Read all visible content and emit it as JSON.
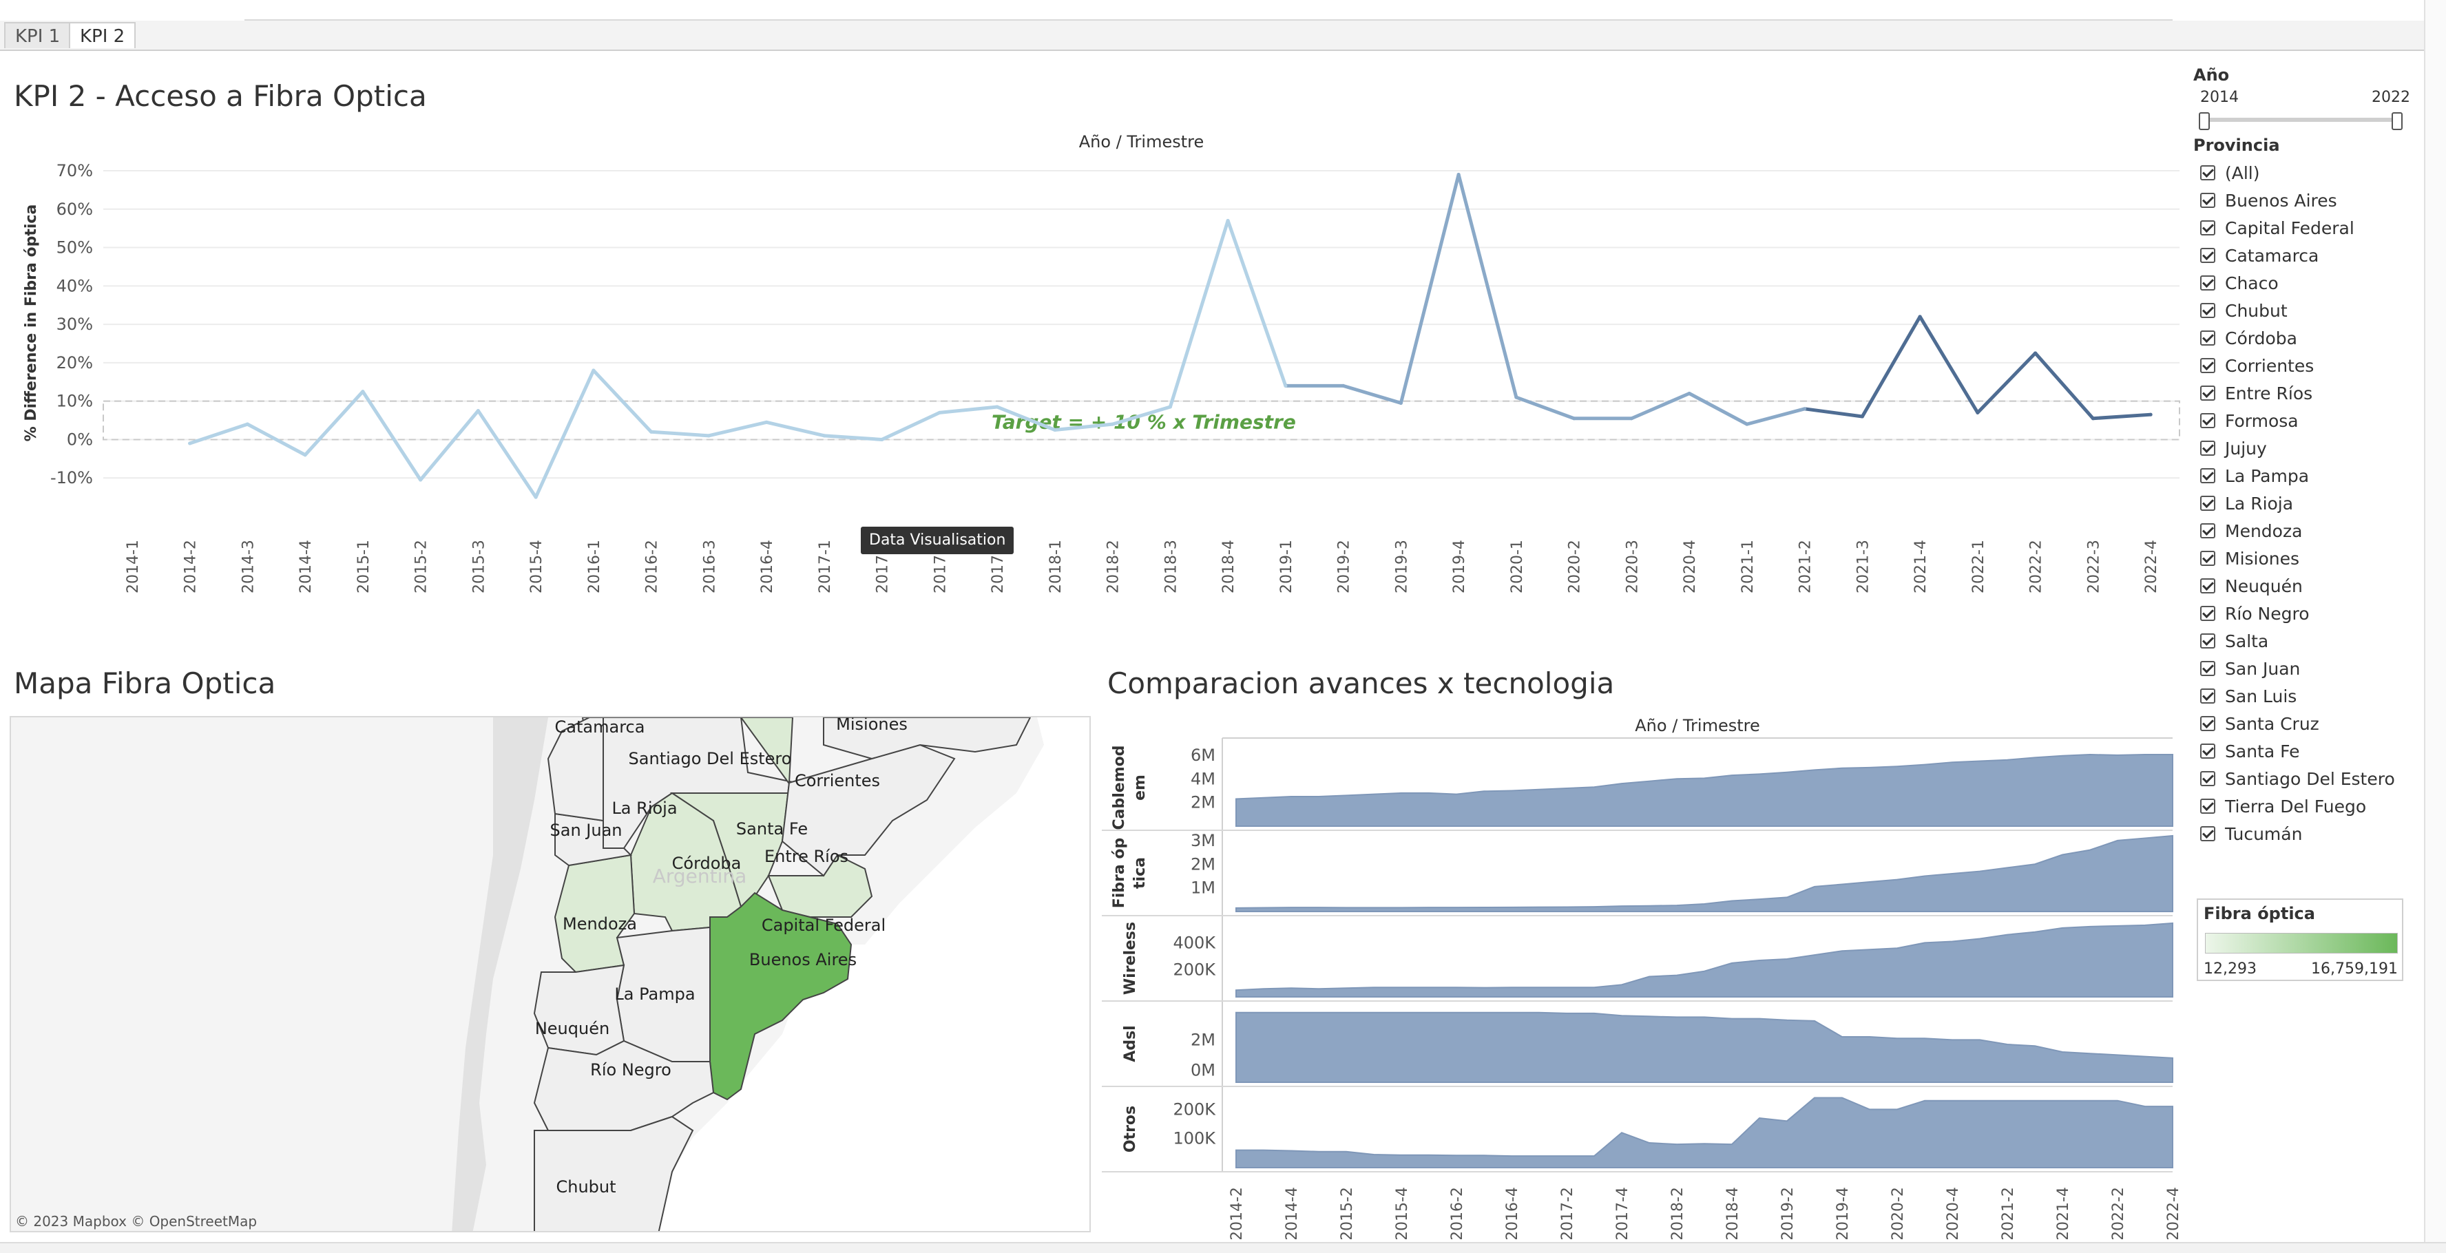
{
  "tabs": [
    "KPI 1",
    "KPI 2"
  ],
  "kpi_title": "KPI 2 - Acceso a Fibra Optica",
  "map_title": "Mapa Fibra Optica",
  "comp_title": "Comparacion avances x tecnologia",
  "tooltip": "Data Visualisation",
  "target_label": "Target =    + 10 %  x Trimestre",
  "map_credit": "© 2023 Mapbox  © OpenStreetMap",
  "filters": {
    "year_label": "Año",
    "year_min": "2014",
    "year_max": "2022",
    "province_label": "Provincia",
    "provinces": [
      "(All)",
      "Buenos Aires",
      "Capital Federal",
      "Catamarca",
      "Chaco",
      "Chubut",
      "Córdoba",
      "Corrientes",
      "Entre Ríos",
      "Formosa",
      "Jujuy",
      "La Pampa",
      "La Rioja",
      "Mendoza",
      "Misiones",
      "Neuquén",
      "Río Negro",
      "Salta",
      "San Juan",
      "San Luis",
      "Santa Cruz",
      "Santa Fe",
      "Santiago Del Estero",
      "Tierra Del Fuego",
      "Tucumán"
    ],
    "legend_title": "Fibra óptica",
    "legend_min": "12,293",
    "legend_max": "16,759,191"
  },
  "map_labels": [
    "Catamarca",
    "Misiones",
    "Santiago Del Estero",
    "Corrientes",
    "La Rioja",
    "Santa Fe",
    "San Juan",
    "Córdoba",
    "Entre Ríos",
    "Argentina",
    "Capital Federal",
    "Mendoza",
    "Buenos Aires",
    "La Pampa",
    "Neuquén",
    "Río Negro",
    "Chubut"
  ],
  "colors": {
    "line_light": "#b3d2e6",
    "line_mid": "#8aa9c8",
    "line_dark": "#4f6d93",
    "area_fill": "#8ea5c3",
    "target": "#5aa044",
    "buenos_aires": "#6bb85a",
    "map_light_green": "#dcebd5",
    "map_grey": "#efefef"
  },
  "chart_data": [
    {
      "type": "line",
      "title": "Año / Trimestre",
      "xlabel": "Año / Trimestre",
      "ylabel": "% Difference in Fibra óptica",
      "ylim": [
        -20,
        70
      ],
      "yticks": [
        "70%",
        "60%",
        "50%",
        "40%",
        "30%",
        "20%",
        "10%",
        "0%",
        "-10%"
      ],
      "grid": true,
      "target_band": [
        0,
        10
      ],
      "categories": [
        "2014-1",
        "2014-2",
        "2014-3",
        "2014-4",
        "2015-1",
        "2015-2",
        "2015-3",
        "2015-4",
        "2016-1",
        "2016-2",
        "2016-3",
        "2016-4",
        "2017-1",
        "2017-2",
        "2017-3",
        "2017-4",
        "2018-1",
        "2018-2",
        "2018-3",
        "2018-4",
        "2019-1",
        "2019-2",
        "2019-3",
        "2019-4",
        "2020-1",
        "2020-2",
        "2020-3",
        "2020-4",
        "2021-1",
        "2021-2",
        "2021-3",
        "2021-4",
        "2022-1",
        "2022-2",
        "2022-3",
        "2022-4"
      ],
      "values": [
        null,
        -1,
        4,
        -4,
        12.5,
        -10.5,
        7.5,
        -15,
        18,
        2,
        1,
        4.5,
        1,
        0,
        7,
        8.5,
        2.5,
        4,
        8.5,
        57,
        14,
        14,
        9.5,
        69,
        11,
        5.5,
        5.5,
        12,
        4,
        8,
        6,
        32,
        7,
        22.5,
        5.5,
        6.5
      ]
    },
    {
      "type": "area",
      "title": "Año / Trimestre",
      "xlabel": "Año / Trimestre",
      "categories": [
        "2014-2",
        "2014-3",
        "2014-4",
        "2015-1",
        "2015-2",
        "2015-3",
        "2015-4",
        "2016-1",
        "2016-2",
        "2016-3",
        "2016-4",
        "2017-1",
        "2017-2",
        "2017-3",
        "2017-4",
        "2018-1",
        "2018-2",
        "2018-3",
        "2018-4",
        "2019-1",
        "2019-2",
        "2019-3",
        "2019-4",
        "2020-1",
        "2020-2",
        "2020-3",
        "2020-4",
        "2021-1",
        "2021-2",
        "2021-3",
        "2021-4",
        "2022-1",
        "2022-2",
        "2022-3",
        "2022-4"
      ],
      "xticks": [
        "2014-2",
        "2014-4",
        "2015-2",
        "2015-4",
        "2016-2",
        "2016-4",
        "2017-2",
        "2017-4",
        "2018-2",
        "2018-4",
        "2019-2",
        "2019-4",
        "2020-2",
        "2020-4",
        "2021-2",
        "2021-4",
        "2022-2",
        "2022-4"
      ],
      "series": [
        {
          "name": "Cablemodem",
          "yticks": [
            "6M",
            "4M",
            "2M"
          ],
          "ylim": [
            0,
            6400000
          ],
          "values": [
            2300000,
            2400000,
            2500000,
            2500000,
            2600000,
            2700000,
            2800000,
            2800000,
            2700000,
            2950000,
            3000000,
            3100000,
            3200000,
            3300000,
            3600000,
            3800000,
            4000000,
            4050000,
            4300000,
            4400000,
            4550000,
            4750000,
            4900000,
            4950000,
            5050000,
            5200000,
            5400000,
            5500000,
            5600000,
            5800000,
            5950000,
            6050000,
            6000000,
            6050000,
            6050000
          ]
        },
        {
          "name": "Fibra óptica",
          "yticks": [
            "3M",
            "2M",
            "1M"
          ],
          "ylim": [
            0,
            3200000
          ],
          "values": [
            150000,
            160000,
            170000,
            170000,
            165000,
            165000,
            165000,
            170000,
            170000,
            175000,
            180000,
            185000,
            190000,
            200000,
            230000,
            240000,
            260000,
            320000,
            450000,
            520000,
            600000,
            1050000,
            1150000,
            1250000,
            1350000,
            1500000,
            1600000,
            1700000,
            1850000,
            2000000,
            2400000,
            2600000,
            3000000,
            3100000,
            3200000
          ]
        },
        {
          "name": "Wireless",
          "yticks": [
            "400K",
            "200K"
          ],
          "ylim": [
            0,
            560000
          ],
          "values": [
            50000,
            60000,
            65000,
            60000,
            65000,
            70000,
            70000,
            70000,
            70000,
            68000,
            70000,
            70000,
            70000,
            70000,
            90000,
            150000,
            160000,
            190000,
            250000,
            270000,
            280000,
            310000,
            340000,
            350000,
            360000,
            400000,
            410000,
            430000,
            460000,
            480000,
            510000,
            520000,
            525000,
            530000,
            545000
          ]
        },
        {
          "name": "Adsl",
          "yticks": [
            "2M",
            "0M"
          ],
          "ylim": [
            -800000,
            4200000
          ],
          "values": [
            3800000,
            3800000,
            3800000,
            3800000,
            3800000,
            3800000,
            3800000,
            3800000,
            3800000,
            3800000,
            3800000,
            3800000,
            3750000,
            3750000,
            3600000,
            3550000,
            3500000,
            3500000,
            3400000,
            3400000,
            3300000,
            3250000,
            2200000,
            2200000,
            2100000,
            2100000,
            2000000,
            2000000,
            1700000,
            1600000,
            1200000,
            1100000,
            1000000,
            900000,
            800000
          ]
        },
        {
          "name": "Otros",
          "yticks": [
            "200K",
            "100K"
          ],
          "ylim": [
            0,
            260000
          ],
          "values": [
            60000,
            60000,
            58000,
            55000,
            55000,
            45000,
            43000,
            43000,
            42000,
            42000,
            40000,
            40000,
            40000,
            40000,
            120000,
            85000,
            80000,
            82000,
            80000,
            170000,
            160000,
            240000,
            240000,
            200000,
            200000,
            230000,
            230000,
            230000,
            230000,
            230000,
            230000,
            230000,
            230000,
            210000,
            210000
          ]
        }
      ]
    }
  ]
}
